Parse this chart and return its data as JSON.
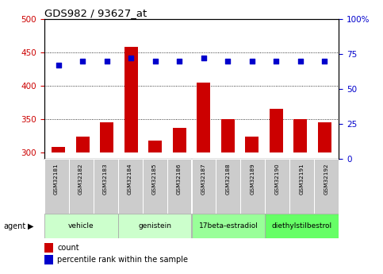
{
  "title": "GDS982 / 93627_at",
  "samples": [
    "GSM32181",
    "GSM32182",
    "GSM32183",
    "GSM32184",
    "GSM32185",
    "GSM32186",
    "GSM32187",
    "GSM32188",
    "GSM32189",
    "GSM32190",
    "GSM32191",
    "GSM32192"
  ],
  "count_values": [
    308,
    323,
    345,
    458,
    318,
    337,
    405,
    350,
    323,
    365,
    350,
    345
  ],
  "percentile_values": [
    67,
    70,
    70,
    72,
    70,
    70,
    72,
    70,
    70,
    70,
    70,
    70
  ],
  "count_baseline": 300,
  "ylim_left": [
    290,
    500
  ],
  "ylim_right": [
    0,
    100
  ],
  "yticks_left": [
    300,
    350,
    400,
    450,
    500
  ],
  "yticks_right": [
    0,
    25,
    50,
    75,
    100
  ],
  "agent_groups": [
    {
      "label": "vehicle",
      "start": 0,
      "end": 3,
      "color": "#ccffcc"
    },
    {
      "label": "genistein",
      "start": 3,
      "end": 6,
      "color": "#ccffcc"
    },
    {
      "label": "17beta-estradiol",
      "start": 6,
      "end": 9,
      "color": "#99ff99"
    },
    {
      "label": "diethylstilbestrol",
      "start": 9,
      "end": 12,
      "color": "#66ff66"
    }
  ],
  "bar_color": "#cc0000",
  "dot_color": "#0000cc",
  "bar_width": 0.55,
  "grid_color": "#000000",
  "bg_color": "#ffffff",
  "left_tick_color": "#cc0000",
  "right_tick_color": "#0000cc",
  "xtick_bg": "#cccccc",
  "legend_items": [
    {
      "label": "count",
      "color": "#cc0000"
    },
    {
      "label": "percentile rank within the sample",
      "color": "#0000cc"
    }
  ]
}
